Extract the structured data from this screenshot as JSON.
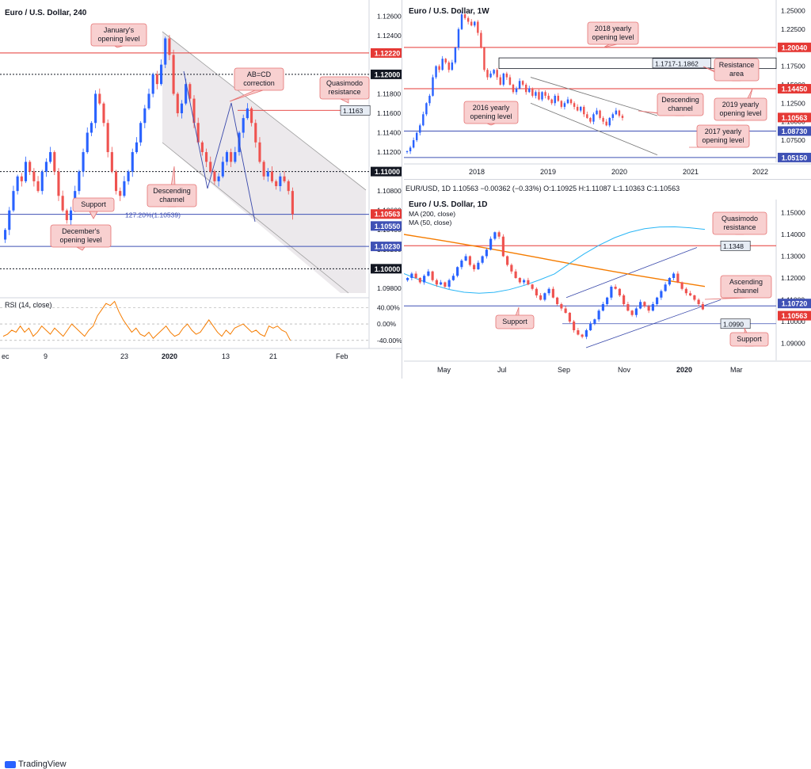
{
  "colors": {
    "up": "#2962ff",
    "down": "#ef5350",
    "rsi": "#f57c00",
    "ma200": "#f57c00",
    "ma50": "#29b6f6",
    "red_level": "#e53935",
    "blue_level": "#3f51b5",
    "black_level": "#131722",
    "callout_bg": "#f8d0d0",
    "callout_border": "#e57373",
    "channel_fill": "#ece9ec"
  },
  "footer": {
    "brand": "TradingView"
  },
  "chart_data": [
    {
      "type": "candlestick",
      "title": "Euro / U.S. Dollar, 240",
      "ylim": [
        1.0975,
        1.127
      ],
      "x_ticks": [
        "ec",
        "9",
        "23",
        "2020",
        "13",
        "21",
        "Feb"
      ],
      "y_ticks": [
        "1.12600",
        "1.12400",
        "1.12200",
        "1.12000",
        "1.11800",
        "1.11600",
        "1.11400",
        "1.11200",
        "1.11000",
        "1.10800",
        "1.10600",
        "1.10400",
        "1.10200",
        "1.10000",
        "1.09800"
      ],
      "price_labels": [
        {
          "value": "1.12220",
          "color": "red"
        },
        {
          "value": "1.12000",
          "color": "black"
        },
        {
          "value": "1.11000",
          "color": "black"
        },
        {
          "value": "1.10563",
          "color": "red"
        },
        {
          "value": "1.10550",
          "color": "blue"
        },
        {
          "value": "1.10230",
          "color": "blue"
        },
        {
          "value": "1.10000",
          "color": "black"
        }
      ],
      "annotations": [
        "January's opening level",
        "AB=CD correction",
        "Quasimodo resistance",
        "1.1163",
        "Descending channel",
        "Support",
        "127.20%(1.10539)",
        "December's opening level"
      ],
      "rsi": {
        "label": "RSI (14, close)",
        "ticks": [
          "40.00%",
          "0.00%",
          "-40.00%"
        ],
        "values": [
          -30,
          -25,
          -15,
          -20,
          -5,
          -20,
          -10,
          -30,
          -20,
          -5,
          -15,
          -25,
          -10,
          -20,
          -30,
          -15,
          0,
          -10,
          -20,
          -30,
          -15,
          -5,
          20,
          35,
          50,
          45,
          55,
          30,
          10,
          -5,
          -20,
          -10,
          -25,
          -30,
          -20,
          -35,
          -25,
          -15,
          -5,
          -20,
          -30,
          -25,
          -10,
          0,
          -15,
          -25,
          -20,
          -5,
          10,
          -5,
          -20,
          -30,
          -15,
          -25,
          -10,
          -5,
          0,
          -10,
          -20,
          -15,
          -25,
          -30,
          -5,
          -10,
          -5,
          -15,
          -20,
          -40
        ]
      },
      "candles": [
        1.104,
        1.106,
        1.108,
        1.1095,
        1.109,
        1.111,
        1.11,
        1.109,
        1.108,
        1.11,
        1.111,
        1.112,
        1.11,
        1.1075,
        1.106,
        1.105,
        1.106,
        1.108,
        1.11,
        1.112,
        1.114,
        1.115,
        1.118,
        1.117,
        1.115,
        1.112,
        1.11,
        1.108,
        1.1075,
        1.109,
        1.11,
        1.112,
        1.113,
        1.115,
        1.1165,
        1.118,
        1.12,
        1.119,
        1.121,
        1.1237,
        1.122,
        1.118,
        1.116,
        1.117,
        1.119,
        1.1175,
        1.115,
        1.113,
        1.112,
        1.111,
        1.11,
        1.109,
        1.1095,
        1.111,
        1.112,
        1.111,
        1.112,
        1.114,
        1.1155,
        1.1165,
        1.115,
        1.113,
        1.111,
        1.1095,
        1.11,
        1.109,
        1.1085,
        1.1095,
        1.109,
        1.108,
        1.1056
      ]
    },
    {
      "type": "candlestick",
      "title": "Euro / U.S. Dollar, 1W",
      "ylim": [
        1.045,
        1.258
      ],
      "x_ticks": [
        "2018",
        "2019",
        "2020",
        "2021",
        "2022"
      ],
      "y_ticks": [
        "1.25000",
        "1.22500",
        "1.20000",
        "1.17500",
        "1.15000",
        "1.12500",
        "1.10000",
        "1.07500",
        "1.05000"
      ],
      "price_labels": [
        {
          "value": "1.20040",
          "color": "red"
        },
        {
          "value": "1.14450",
          "color": "red"
        },
        {
          "value": "1.10563",
          "color": "red"
        },
        {
          "value": "1.08730",
          "color": "blue"
        },
        {
          "value": "1.05150",
          "color": "blue"
        }
      ],
      "annotations": [
        "2018 yearly opening level",
        "1.1717-1.1862",
        "Resistance area",
        "Descending channel",
        "2019 yearly opening level",
        "2016 yearly opening level",
        "2017 yearly opening level"
      ],
      "candles": [
        1.06,
        1.065,
        1.075,
        1.085,
        1.095,
        1.11,
        1.125,
        1.135,
        1.16,
        1.175,
        1.17,
        1.185,
        1.18,
        1.17,
        1.18,
        1.2,
        1.225,
        1.245,
        1.24,
        1.235,
        1.23,
        1.235,
        1.22,
        1.2,
        1.17,
        1.16,
        1.165,
        1.17,
        1.16,
        1.15,
        1.165,
        1.16,
        1.15,
        1.14,
        1.145,
        1.155,
        1.15,
        1.14,
        1.145,
        1.135,
        1.14,
        1.13,
        1.14,
        1.135,
        1.13,
        1.125,
        1.135,
        1.128,
        1.12,
        1.125,
        1.13,
        1.125,
        1.12,
        1.115,
        1.12,
        1.11,
        1.105,
        1.1,
        1.11,
        1.115,
        1.105,
        1.1,
        1.095,
        1.105,
        1.11,
        1.115,
        1.108,
        1.105
      ]
    },
    {
      "type": "candlestick",
      "title": "Euro / U.S. Dollar, 1D",
      "ylim": [
        1.084,
        1.156
      ],
      "symbol_line": {
        "symbol": "EUR/USD, 1D",
        "close": "1.10563",
        "change": "−0.00362 (−0.33%)",
        "open": "1.10925",
        "high": "1.11087",
        "low": "1.10363",
        "last": "1.10563"
      },
      "indicators": [
        "MA (200, close)",
        "MA (50, close)"
      ],
      "x_ticks": [
        "May",
        "Jul",
        "Sep",
        "Nov",
        "2020",
        "Mar"
      ],
      "y_ticks": [
        "1.15000",
        "1.14000",
        "1.13000",
        "1.12000",
        "1.11000",
        "1.10000",
        "1.09000"
      ],
      "price_labels": [
        {
          "value": "1.10720",
          "color": "blue"
        },
        {
          "value": "1.10563",
          "color": "red"
        }
      ],
      "annotations": [
        "Quasimodo resistance",
        "1.1348",
        "Ascending channel",
        "Support",
        "1.0990",
        "Support"
      ],
      "candles": [
        1.12,
        1.122,
        1.12,
        1.118,
        1.121,
        1.123,
        1.119,
        1.117,
        1.118,
        1.116,
        1.119,
        1.121,
        1.125,
        1.128,
        1.13,
        1.126,
        1.124,
        1.127,
        1.13,
        1.133,
        1.138,
        1.141,
        1.139,
        1.13,
        1.126,
        1.123,
        1.12,
        1.118,
        1.119,
        1.117,
        1.115,
        1.112,
        1.11,
        1.113,
        1.115,
        1.111,
        1.108,
        1.106,
        1.104,
        1.1,
        1.096,
        1.094,
        1.093,
        1.096,
        1.099,
        1.101,
        1.105,
        1.108,
        1.111,
        1.116,
        1.115,
        1.112,
        1.108,
        1.105,
        1.103,
        1.106,
        1.109,
        1.107,
        1.105,
        1.108,
        1.111,
        1.114,
        1.117,
        1.12,
        1.122,
        1.118,
        1.115,
        1.113,
        1.112,
        1.11,
        1.108,
        1.1056
      ]
    }
  ]
}
